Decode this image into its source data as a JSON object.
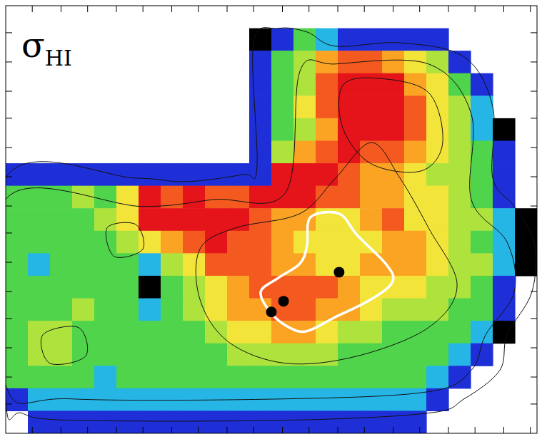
{
  "chart_data": {
    "type": "heatmap",
    "title": "σHI",
    "tick_labels": false,
    "xlim": [
      0,
      24
    ],
    "ylim": [
      19,
      0
    ],
    "xticks": [
      1.2,
      2.5,
      3.7,
      5,
      6.2,
      7.5,
      8.7,
      10,
      11.2,
      12.5,
      13.7,
      15,
      16.2,
      17.5,
      18.7,
      20,
      21.2,
      22.5,
      23.7
    ],
    "yticks": [
      1.2,
      2.5,
      3.8,
      5,
      6.3,
      7.6,
      8.9,
      10.1,
      11.4,
      12.7,
      13.9,
      15.2,
      16.5,
      17.7
    ],
    "zlim": [
      1,
      9
    ],
    "cells": [
      [
        null,
        null,
        null,
        null,
        null,
        null,
        null,
        null,
        null,
        null,
        null,
        null,
        null,
        null,
        null,
        null,
        null,
        null,
        null,
        null,
        null,
        null,
        null,
        null
      ],
      [
        null,
        null,
        null,
        null,
        null,
        null,
        null,
        null,
        null,
        null,
        null,
        1,
        2,
        4,
        3,
        2,
        2,
        2,
        2,
        2,
        null,
        null,
        null,
        null
      ],
      [
        null,
        null,
        null,
        null,
        null,
        null,
        null,
        null,
        null,
        null,
        null,
        2,
        4,
        5,
        7,
        8,
        8,
        7,
        6,
        5,
        2,
        null,
        null,
        null
      ],
      [
        null,
        null,
        null,
        null,
        null,
        null,
        null,
        null,
        null,
        null,
        null,
        2,
        4,
        5,
        8,
        9,
        9,
        9,
        7,
        6,
        4,
        2,
        null,
        null
      ],
      [
        null,
        null,
        null,
        null,
        null,
        null,
        null,
        null,
        null,
        null,
        null,
        2,
        4,
        6,
        8,
        9,
        9,
        9,
        8,
        6,
        5,
        3,
        null,
        null
      ],
      [
        null,
        null,
        null,
        null,
        null,
        null,
        null,
        null,
        null,
        null,
        null,
        2,
        4,
        5,
        7,
        9,
        9,
        9,
        8,
        6,
        5,
        3,
        1,
        null
      ],
      [
        null,
        null,
        null,
        null,
        null,
        null,
        null,
        null,
        null,
        null,
        null,
        2,
        5,
        7,
        8,
        9,
        8,
        8,
        7,
        6,
        5,
        4,
        2,
        null
      ],
      [
        2,
        2,
        2,
        2,
        2,
        2,
        2,
        2,
        2,
        2,
        2,
        2,
        9,
        9,
        9,
        8,
        7,
        7,
        6,
        5,
        5,
        4,
        2,
        null
      ],
      [
        4,
        4,
        4,
        5,
        4,
        6,
        9,
        8,
        9,
        8,
        8,
        9,
        9,
        9,
        8,
        8,
        7,
        7,
        6,
        6,
        5,
        4,
        2,
        null
      ],
      [
        4,
        4,
        4,
        4,
        5,
        6,
        9,
        9,
        9,
        9,
        9,
        8,
        7,
        7,
        6,
        6,
        7,
        8,
        6,
        6,
        5,
        5,
        3,
        1
      ],
      [
        4,
        4,
        4,
        4,
        4,
        5,
        6,
        7,
        8,
        9,
        8,
        8,
        7,
        6,
        6,
        6,
        6,
        7,
        7,
        6,
        5,
        4,
        3,
        1
      ],
      [
        4,
        3,
        4,
        4,
        4,
        4,
        3,
        5,
        6,
        8,
        8,
        8,
        7,
        7,
        6,
        6,
        7,
        7,
        7,
        6,
        5,
        5,
        3,
        1
      ],
      [
        4,
        4,
        4,
        4,
        4,
        4,
        1,
        4,
        5,
        6,
        7,
        8,
        8,
        8,
        8,
        7,
        6,
        6,
        6,
        5,
        5,
        4,
        2,
        null
      ],
      [
        4,
        4,
        4,
        5,
        4,
        4,
        3,
        4,
        5,
        6,
        7,
        7,
        8,
        8,
        7,
        7,
        6,
        5,
        5,
        5,
        4,
        4,
        2,
        null
      ],
      [
        4,
        5,
        5,
        4,
        4,
        4,
        4,
        4,
        4,
        5,
        6,
        6,
        7,
        7,
        6,
        5,
        5,
        4,
        4,
        4,
        4,
        3,
        1,
        null
      ],
      [
        4,
        5,
        5,
        4,
        4,
        4,
        4,
        4,
        4,
        4,
        5,
        5,
        5,
        5,
        5,
        4,
        4,
        4,
        4,
        4,
        3,
        2,
        null,
        null
      ],
      [
        4,
        4,
        4,
        4,
        3,
        4,
        4,
        4,
        4,
        4,
        4,
        4,
        4,
        4,
        4,
        4,
        4,
        4,
        4,
        3,
        2,
        null,
        null,
        null
      ],
      [
        2,
        3,
        3,
        3,
        3,
        3,
        3,
        3,
        3,
        3,
        3,
        3,
        3,
        3,
        3,
        3,
        3,
        3,
        3,
        2,
        null,
        null,
        null,
        null
      ],
      [
        null,
        2,
        2,
        2,
        2,
        2,
        2,
        2,
        2,
        2,
        2,
        2,
        2,
        2,
        2,
        2,
        2,
        2,
        2,
        null,
        null,
        null,
        null,
        null
      ]
    ],
    "contours": [
      {
        "x": [
          0,
          5.87,
          8.13,
          10.71,
          11.35,
          11.19,
          12.32,
          13.61,
          14.9,
          17.81,
          20.71,
          22.0,
          22.0,
          22.97,
          23.87,
          23.77,
          22.65,
          22.32,
          20.71,
          19.1,
          12.65,
          2.97,
          0.71,
          0
        ],
        "y": [
          7.66,
          7.66,
          7.82,
          7.5,
          7.18,
          1.65,
          1.01,
          1.17,
          1.8,
          1.65,
          2.28,
          4.49,
          7.66,
          8.92,
          10.51,
          12.72,
          14.62,
          16.2,
          17.47,
          18.1,
          18.42,
          18.42,
          18.1,
          17.47
        ]
      },
      {
        "x": [
          0,
          6.19,
          9.42,
          12.65,
          13.29,
          14.9,
          19.1,
          21.03,
          21.03,
          22.65,
          22.97,
          21.68,
          21.03,
          19.1,
          12.65,
          2.97,
          0
        ],
        "y": [
          8.61,
          8.92,
          8.61,
          8.29,
          2.91,
          2.59,
          2.59,
          4.81,
          8.61,
          10.51,
          12.72,
          14.62,
          16.2,
          17.15,
          17.47,
          17.47,
          16.84
        ]
      },
      {
        "x": [
          8.77,
          10.39,
          13.29,
          14.9,
          16.52,
          17.81,
          19.1,
          20.39,
          19.1,
          15.87,
          12.65,
          10.06,
          8.77
        ],
        "y": [
          10.82,
          9.87,
          9.24,
          7.66,
          6.08,
          7.66,
          9.87,
          12.41,
          14.3,
          15.57,
          15.89,
          14.94,
          13.04
        ]
      },
      {
        "x": [
          15.23,
          16.84,
          19.1,
          19.74,
          18.77,
          16.52,
          15.23
        ],
        "y": [
          3.54,
          3.23,
          3.86,
          6.08,
          7.34,
          7.03,
          5.44
        ]
      },
      {
        "x": [
          1.68,
          3.29,
          3.61,
          2.0
        ],
        "y": [
          14.62,
          14.3,
          15.57,
          15.89
        ]
      },
      {
        "x": [
          4.58,
          5.87,
          6.19,
          4.9
        ],
        "y": [
          9.87,
          9.72,
          10.82,
          11.14
        ]
      }
    ],
    "region": {
      "x": [
        13.77,
        15.06,
        15.87,
        17.16,
        17.48,
        16.52,
        14.9,
        13.61,
        12.81,
        12.0,
        11.52,
        12.32,
        13.29,
        13.61
      ],
      "y": [
        9.4,
        9.24,
        10.19,
        11.46,
        12.25,
        13.04,
        13.83,
        14.46,
        14.3,
        13.67,
        12.72,
        12.09,
        11.46,
        10.66
      ]
    },
    "points": {
      "x": [
        15.06,
        12.55,
        12.0
      ],
      "y": [
        11.84,
        13.13,
        13.61
      ]
    }
  }
}
